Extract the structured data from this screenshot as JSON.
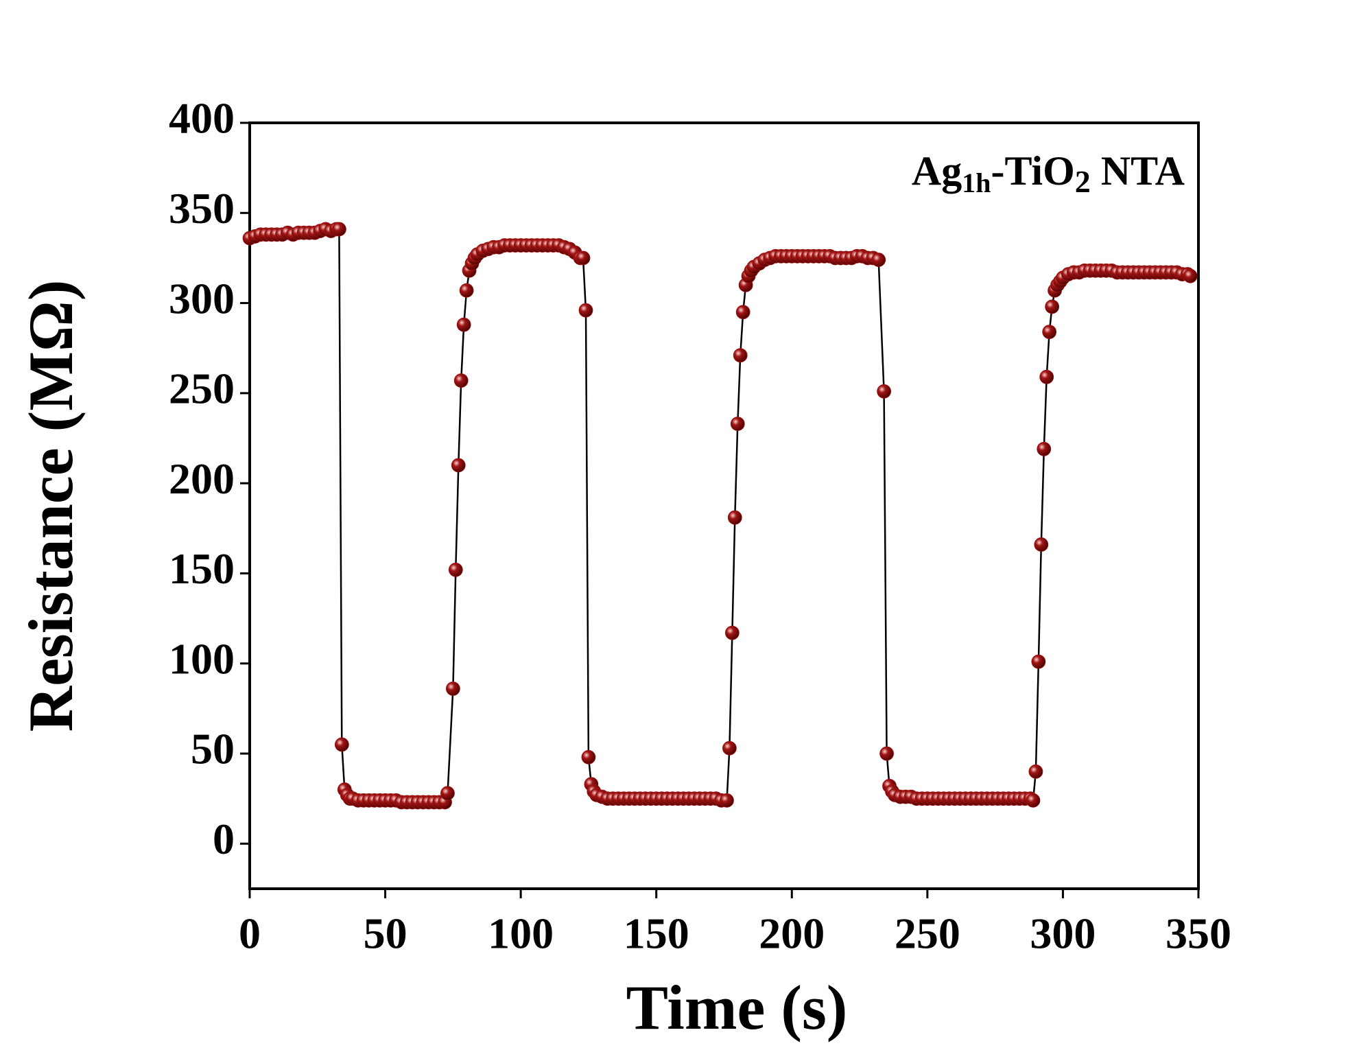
{
  "chart_data": {
    "type": "line",
    "annotation": [
      "Ag",
      "1h",
      "-TiO",
      "2",
      " NTA"
    ],
    "xlabel": "Time (s)",
    "ylabel": "Resistance (MΩ)",
    "color": "#a01515",
    "x": [
      0,
      2,
      4,
      6,
      8,
      10,
      12,
      14,
      16,
      18,
      20,
      22,
      24,
      26,
      28,
      30,
      32,
      33,
      34,
      35,
      36,
      37,
      38,
      40,
      42,
      44,
      46,
      48,
      50,
      52,
      54,
      56,
      58,
      60,
      62,
      64,
      66,
      68,
      70,
      72,
      73,
      75,
      76,
      77,
      78,
      79,
      80,
      81,
      82,
      83,
      84,
      86,
      88,
      90,
      92,
      94,
      96,
      98,
      100,
      102,
      104,
      106,
      108,
      110,
      112,
      114,
      116,
      118,
      120,
      122,
      123,
      124,
      125,
      126,
      127,
      128,
      130,
      132,
      134,
      136,
      138,
      140,
      142,
      144,
      146,
      148,
      150,
      152,
      154,
      156,
      158,
      160,
      162,
      164,
      166,
      168,
      170,
      172,
      174,
      176,
      177,
      178,
      179,
      180,
      181,
      182,
      183,
      184,
      185,
      186,
      188,
      190,
      192,
      194,
      196,
      198,
      200,
      202,
      204,
      206,
      208,
      210,
      212,
      214,
      216,
      218,
      220,
      222,
      224,
      226,
      228,
      230,
      232,
      234,
      235,
      236,
      237,
      238,
      240,
      242,
      244,
      246,
      248,
      250,
      252,
      254,
      256,
      258,
      260,
      262,
      264,
      266,
      268,
      270,
      272,
      274,
      276,
      278,
      280,
      282,
      284,
      286,
      288,
      289,
      290,
      291,
      292,
      293,
      294,
      295,
      296,
      297,
      298,
      299,
      300,
      302,
      304,
      306,
      308,
      310,
      312,
      314,
      316,
      318,
      320,
      322,
      324,
      326,
      328,
      330,
      332,
      334,
      336,
      338,
      340,
      342,
      344,
      346,
      347
    ],
    "values": [
      336,
      337,
      338,
      338,
      338,
      338,
      338,
      339,
      338,
      339,
      339,
      339,
      339,
      340,
      341,
      340,
      341,
      341,
      55,
      30,
      27,
      25,
      25,
      24,
      24,
      24,
      24,
      24,
      24,
      24,
      24,
      23,
      23,
      23,
      23,
      23,
      23,
      23,
      23,
      23,
      28,
      86,
      152,
      210,
      257,
      288,
      307,
      318,
      322,
      325,
      327,
      329,
      330,
      331,
      331,
      332,
      332,
      332,
      332,
      332,
      332,
      332,
      332,
      332,
      332,
      332,
      331,
      330,
      328,
      325,
      325,
      296,
      48,
      33,
      29,
      27,
      26,
      25,
      25,
      25,
      25,
      25,
      25,
      25,
      25,
      25,
      25,
      25,
      25,
      25,
      25,
      25,
      25,
      25,
      25,
      25,
      25,
      25,
      24,
      24,
      53,
      117,
      181,
      233,
      271,
      295,
      310,
      315,
      318,
      320,
      322,
      324,
      325,
      326,
      326,
      326,
      326,
      326,
      326,
      326,
      326,
      326,
      326,
      326,
      325,
      325,
      325,
      325,
      326,
      326,
      325,
      325,
      324,
      251,
      50,
      32,
      29,
      27,
      26,
      26,
      26,
      25,
      25,
      25,
      25,
      25,
      25,
      25,
      25,
      25,
      25,
      25,
      25,
      25,
      25,
      25,
      25,
      25,
      25,
      25,
      25,
      25,
      25,
      24,
      40,
      101,
      166,
      219,
      259,
      284,
      298,
      307,
      310,
      312,
      314,
      316,
      317,
      317,
      318,
      318,
      318,
      318,
      318,
      318,
      317,
      317,
      317,
      317,
      317,
      317,
      317,
      317,
      317,
      317,
      317,
      317,
      316,
      316,
      315
    ],
    "xlim": [
      0,
      350
    ],
    "xticks": [
      0,
      50,
      100,
      150,
      200,
      250,
      300,
      350
    ],
    "ylim": [
      -25,
      400
    ],
    "yticks": [
      0,
      50,
      100,
      150,
      200,
      250,
      300,
      350,
      400
    ]
  }
}
